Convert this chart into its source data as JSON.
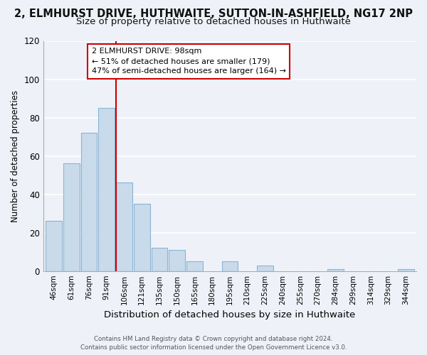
{
  "title": "2, ELMHURST DRIVE, HUTHWAITE, SUTTON-IN-ASHFIELD, NG17 2NP",
  "subtitle": "Size of property relative to detached houses in Huthwaite",
  "xlabel": "Distribution of detached houses by size in Huthwaite",
  "ylabel": "Number of detached properties",
  "bar_labels": [
    "46sqm",
    "61sqm",
    "76sqm",
    "91sqm",
    "106sqm",
    "121sqm",
    "135sqm",
    "150sqm",
    "165sqm",
    "180sqm",
    "195sqm",
    "210sqm",
    "225sqm",
    "240sqm",
    "255sqm",
    "270sqm",
    "284sqm",
    "299sqm",
    "314sqm",
    "329sqm",
    "344sqm"
  ],
  "bar_values": [
    26,
    56,
    72,
    85,
    46,
    35,
    12,
    11,
    5,
    0,
    5,
    0,
    3,
    0,
    0,
    0,
    1,
    0,
    0,
    0,
    1
  ],
  "bar_color": "#c9daea",
  "bar_edge_color": "#8ab4d4",
  "ylim": [
    0,
    120
  ],
  "yticks": [
    0,
    20,
    40,
    60,
    80,
    100,
    120
  ],
  "vline_color": "#cc0000",
  "vline_index": 3.54,
  "annotation_title": "2 ELMHURST DRIVE: 98sqm",
  "annotation_line1": "← 51% of detached houses are smaller (179)",
  "annotation_line2": "47% of semi-detached houses are larger (164) →",
  "annotation_box_color": "#ffffff",
  "annotation_box_edge": "#cc0000",
  "footer_line1": "Contains HM Land Registry data © Crown copyright and database right 2024.",
  "footer_line2": "Contains public sector information licensed under the Open Government Licence v3.0.",
  "background_color": "#eef2f8",
  "plot_background": "#eef2f8",
  "grid_color": "#ffffff",
  "title_fontsize": 10.5,
  "subtitle_fontsize": 9.5,
  "ylabel_fontsize": 8.5,
  "xlabel_fontsize": 9.5
}
